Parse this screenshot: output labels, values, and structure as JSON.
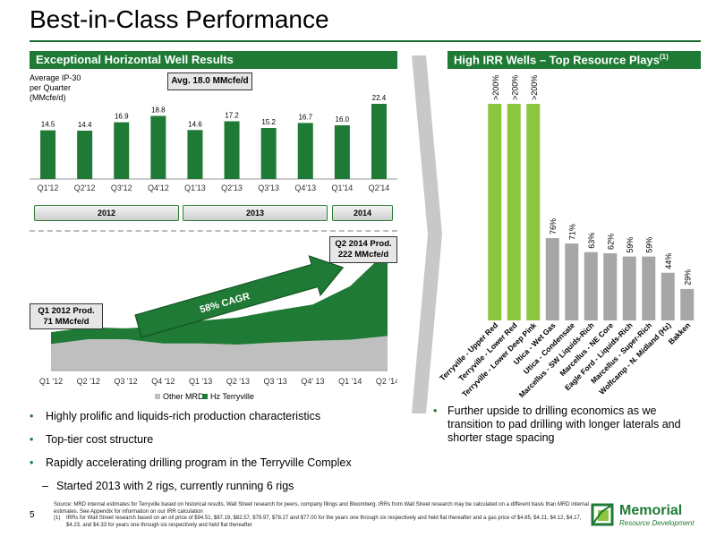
{
  "page": {
    "title": "Best-in-Class Performance",
    "page_number": "5",
    "colors": {
      "accent": "#1e7a34",
      "bright_green": "#8cc63f",
      "gray_bar": "#a6a6a6"
    }
  },
  "left": {
    "header": "Exceptional Horizontal Well Results",
    "ylabel_lines": [
      "Average IP-30",
      "per Quarter",
      "(MMcfe/d)"
    ],
    "avg_label": "Avg. 18.0 MMcfe/d",
    "years": [
      "2012",
      "2013",
      "2014"
    ],
    "q1_callout": [
      "Q1 2012 Prod.",
      "71 MMcfe/d"
    ],
    "q2_callout": [
      "Q2 2014 Prod.",
      "222 MMcfe/d"
    ],
    "cagr": "58% CAGR"
  },
  "right": {
    "header": "High IRR Wells – Top Resource Plays",
    "header_sup": "(1)"
  },
  "bullets": [
    {
      "text": "Highly prolific and liquids-rich production characteristics",
      "sub": false
    },
    {
      "text": "Top-tier cost structure",
      "sub": false
    },
    {
      "text": "Rapidly accelerating drilling program in the Terryville Complex",
      "sub": false
    },
    {
      "text": "Started 2013 with 2 rigs, currently running 6 rigs",
      "sub": true
    }
  ],
  "right_bullet": "Further upside to drilling economics as we transition to pad drilling with longer laterals and shorter stage spacing",
  "footnote": {
    "source": "Source: MRD internal estimates for Terryville based on historical results, Wall Street research for peers, company filings and Bloomberg. IRRs from Wall Street research may be calculated on a different basis than MRD internal estimates. See Appendix for information on our IRR calculation",
    "note1_marker": "(1)",
    "note1": "IRRs for Wall Street research based on an oil price of $94.51, $87.19, $82.57, $79.97, $78.27 and $77.00 for the years one through six respectively and held flat thereafter and a gas price of $4.65, $4.21, $4.12, $4.17, $4.23, and $4.33 for years one through six respectively and held flat thereafter"
  },
  "logo": {
    "name": "Memorial",
    "subtitle": "Resource Development"
  },
  "chart_data": [
    {
      "type": "bar",
      "title": "",
      "ylabel": "Average IP-30 per Quarter (MMcfe/d)",
      "categories": [
        "Q1'12",
        "Q2'12",
        "Q3'12",
        "Q4'12",
        "Q1'13",
        "Q2'13",
        "Q3'13",
        "Q4'13",
        "Q1'14",
        "Q2'14"
      ],
      "values": [
        14.5,
        14.4,
        16.9,
        18.8,
        14.6,
        17.2,
        15.2,
        16.7,
        16.0,
        22.4
      ],
      "labels": [
        "14.5",
        "14.4",
        "16.9",
        "18.8",
        "14.6",
        "17.2",
        "15.2",
        "16.7",
        "16.0",
        "22.4"
      ],
      "ylim": [
        0,
        24
      ],
      "color": "#1e7a34"
    },
    {
      "type": "area",
      "title": "",
      "categories": [
        "Q1 '12",
        "Q2 '12",
        "Q3 '12",
        "Q4 '12",
        "Q1 '13",
        "Q2 '13",
        "Q3 '13",
        "Q4' 13",
        "Q1 '14",
        "Q2 '14"
      ],
      "series": [
        {
          "name": "Other MRD",
          "color": "#bfbfbf",
          "values": [
            49,
            58,
            58,
            50,
            50,
            48,
            52,
            55,
            57,
            64
          ]
        },
        {
          "name": "Hz Terryville",
          "color": "#1e7a34",
          "values": [
            22,
            22,
            20,
            32,
            42,
            50,
            59,
            67,
            99,
            158
          ]
        }
      ],
      "ylim": [
        0,
        240
      ],
      "legend": "bottom"
    },
    {
      "type": "bar",
      "title": "",
      "categories": [
        "Terryville - Upper Red",
        "Terryville - Lower Red",
        "Terryville - Lower Deep Pink",
        "Utica - Wet Gas",
        "Utica - Condensate",
        "Marcellus - SW Liquids-Rich",
        "Marcellus - NE Core",
        "Eagle Ford - Liquids-Rich",
        "Marcellus - Super-Rich",
        "Wolfcamp - N. Midland (Hz)",
        "Bakken"
      ],
      "values": [
        200,
        200,
        200,
        76,
        71,
        63,
        62,
        59,
        59,
        44,
        29
      ],
      "labels": [
        ">200%",
        ">200%",
        ">200%",
        "76%",
        "71%",
        "63%",
        "62%",
        "59%",
        "59%",
        "44%",
        "29%"
      ],
      "colors": [
        "#8cc63f",
        "#8cc63f",
        "#8cc63f",
        "#a6a6a6",
        "#a6a6a6",
        "#a6a6a6",
        "#a6a6a6",
        "#a6a6a6",
        "#a6a6a6",
        "#a6a6a6",
        "#a6a6a6"
      ]
    }
  ]
}
